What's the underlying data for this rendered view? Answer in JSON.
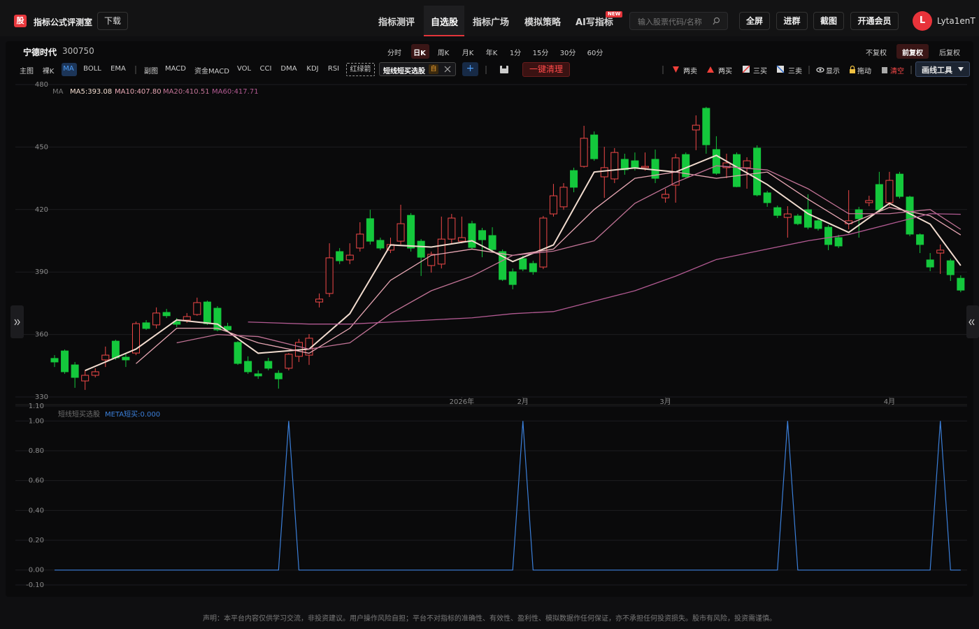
{
  "header": {
    "logo": "股",
    "app_name": "指标公式评测室",
    "download": "下载",
    "nav": [
      "指标测评",
      "自选股",
      "指标广场",
      "模拟策略",
      "AI写指标"
    ],
    "new_badge": "NEW",
    "search_placeholder": "输入股票代码/名称",
    "buttons": [
      "全屏",
      "进群",
      "截图",
      "开通会员"
    ],
    "avatar": "L",
    "username": "Lyta1enT"
  },
  "stock": {
    "name": "宁德时代",
    "code": "300750",
    "periods": [
      "分时",
      "日K",
      "周K",
      "月K",
      "年K",
      "1分",
      "15分",
      "30分",
      "60分"
    ],
    "adjust": [
      "不复权",
      "前复权",
      "后复权"
    ]
  },
  "toolbar": {
    "main_label": "主图",
    "main": [
      "裸K",
      "MA",
      "BOLL",
      "EMA"
    ],
    "sub_label": "副图",
    "sub": [
      "MACD",
      "资金MACD",
      "VOL",
      "CCI",
      "DMA",
      "KDJ",
      "RSI"
    ],
    "arrow": "红绿箭",
    "active_indicator": "短线短买选股",
    "active_badge": "自",
    "plus": "+",
    "clear": "一键清理",
    "signals": [
      "两卖",
      "两买",
      "三买",
      "三卖"
    ],
    "show": "显示",
    "drag": "拖动",
    "empty": "清空",
    "draw_tools": "画线工具"
  },
  "footer": "声明：本平台内容仅供学习交流，非投资建议。用户操作风险自担；平台不对指标的准确性、有效性、盈利性、模拟数据作任何保证，亦不承担任何投资损失。股市有风险，投资需谨慎。",
  "chart_data": [
    {
      "type": "candlestick",
      "up_color": "#f04848",
      "down_color": "#14c83c",
      "grid": true,
      "ylim": [
        330,
        480
      ],
      "yticks": [
        330,
        360,
        390,
        420,
        450,
        480
      ],
      "xticks": [
        {
          "value": 40,
          "label": "2026年"
        },
        {
          "value": 46,
          "label": "2月"
        },
        {
          "value": 60,
          "label": "3月"
        },
        {
          "value": 82,
          "label": "4月"
        }
      ],
      "open": [
        348.5,
        352.1,
        345.4,
        337.7,
        340.4,
        347.8,
        356.8,
        349.1,
        351.1,
        365.6,
        364.6,
        370.6,
        366.2,
        366.9,
        369.6,
        375.6,
        372.6,
        363.9,
        356.2,
        347.1,
        341.1,
        347.1,
        341.4,
        343.8,
        349.5,
        350.1,
        375.6,
        379.7,
        399.8,
        395.8,
        401.5,
        415.6,
        405.2,
        400.5,
        404.8,
        417.2,
        404.8,
        393.1,
        393.8,
        405.8,
        404.8,
        413.2,
        409.9,
        407.5,
        399.8,
        390.1,
        396.4,
        394.1,
        392.4,
        417.9,
        421.3,
        438.7,
        440.7,
        455.8,
        435.7,
        434.7,
        444.1,
        443.4,
        440.1,
        444.1,
        425.6,
        431.7,
        446.4,
        458.2,
        468.6,
        448.8,
        440.1,
        446.4,
        440.1,
        449.5,
        428.0,
        420.9,
        416.2,
        416.9,
        419.9,
        414.6,
        411.5,
        406.5,
        413.2,
        419.9,
        423.3,
        432.0,
        423.3,
        437.0,
        426.0,
        407.9,
        395.8,
        399.1,
        395.4,
        387.0
      ],
      "high": [
        350.1,
        352.8,
        346.8,
        342.8,
        343.8,
        354.2,
        357.5,
        351.1,
        366.2,
        366.9,
        373.0,
        372.3,
        367.9,
        370.3,
        377.7,
        376.3,
        373.6,
        365.6,
        356.8,
        349.5,
        342.8,
        348.8,
        342.8,
        351.1,
        357.9,
        360.2,
        379.7,
        403.8,
        401.5,
        403.8,
        413.9,
        419.9,
        406.5,
        406.5,
        422.3,
        418.3,
        405.8,
        399.8,
        416.6,
        417.9,
        416.6,
        414.6,
        411.2,
        411.5,
        400.8,
        391.7,
        397.8,
        395.4,
        416.9,
        432.3,
        432.7,
        440.1,
        460.2,
        457.5,
        450.1,
        449.5,
        446.8,
        447.4,
        447.4,
        448.8,
        430.0,
        446.8,
        447.4,
        465.2,
        469.3,
        455.2,
        446.8,
        447.4,
        445.1,
        450.8,
        429.0,
        421.9,
        421.6,
        417.9,
        427.3,
        415.6,
        412.5,
        407.9,
        429.3,
        421.3,
        426.6,
        438.1,
        438.1,
        438.1,
        426.6,
        408.5,
        399.1,
        403.2,
        396.4,
        388.4
      ],
      "low": [
        344.4,
        341.1,
        334.4,
        333.4,
        339.4,
        344.4,
        347.8,
        344.4,
        350.1,
        362.2,
        362.9,
        367.9,
        363.6,
        365.6,
        369.0,
        364.6,
        361.5,
        361.2,
        345.4,
        341.1,
        338.7,
        342.8,
        334.0,
        342.8,
        346.8,
        345.4,
        373.0,
        378.0,
        393.8,
        393.8,
        399.8,
        403.2,
        400.5,
        399.1,
        403.2,
        399.8,
        388.1,
        389.7,
        391.7,
        403.2,
        403.8,
        401.1,
        397.1,
        399.8,
        385.7,
        381.7,
        390.4,
        388.7,
        391.4,
        416.6,
        419.9,
        428.3,
        440.1,
        443.4,
        425.6,
        432.7,
        436.7,
        438.7,
        438.7,
        432.7,
        423.3,
        423.3,
        435.0,
        448.5,
        446.8,
        436.7,
        435.0,
        430.7,
        430.0,
        426.3,
        421.3,
        415.9,
        406.5,
        412.5,
        410.5,
        409.9,
        400.5,
        401.5,
        410.5,
        406.5,
        421.6,
        418.6,
        421.6,
        425.3,
        407.2,
        399.1,
        390.4,
        389.1,
        385.7,
        380.3
      ],
      "close": [
        346.8,
        342.1,
        339.4,
        340.4,
        342.1,
        350.1,
        348.8,
        347.8,
        365.2,
        362.9,
        370.3,
        369.0,
        364.9,
        368.6,
        375.3,
        365.2,
        362.2,
        362.2,
        346.1,
        342.1,
        340.1,
        343.8,
        338.7,
        350.5,
        356.2,
        358.2,
        377.0,
        396.8,
        395.4,
        398.1,
        408.2,
        404.8,
        401.5,
        403.2,
        413.2,
        401.5,
        397.1,
        398.5,
        405.8,
        415.9,
        406.5,
        401.8,
        405.5,
        400.8,
        386.4,
        384.0,
        391.4,
        390.1,
        415.9,
        426.6,
        430.7,
        430.7,
        454.2,
        444.4,
        440.1,
        447.4,
        439.1,
        440.1,
        440.7,
        435.0,
        427.3,
        444.8,
        435.7,
        460.5,
        451.1,
        437.4,
        442.4,
        431.0,
        443.4,
        427.0,
        423.3,
        417.2,
        417.9,
        413.2,
        411.5,
        410.9,
        403.2,
        402.5,
        414.6,
        415.6,
        424.3,
        419.9,
        434.0,
        426.3,
        408.2,
        403.2,
        392.4,
        400.5,
        388.7,
        381.3
      ],
      "legend_title": "MA",
      "overlays": [
        {
          "name": "MA5:393.08",
          "color": "#f2dccf",
          "x": [
            3,
            8,
            12,
            16,
            20,
            25,
            29,
            33,
            37,
            41,
            45,
            49,
            53,
            57,
            61,
            65,
            70,
            74,
            78,
            82,
            86,
            89
          ],
          "values": [
            342.7,
            353,
            367,
            365,
            351,
            353,
            370,
            403,
            402,
            405,
            395,
            403,
            438,
            440,
            438,
            446,
            432,
            418,
            409,
            423,
            413,
            393.1
          ]
        },
        {
          "name": "MA10:407.80",
          "color": "#e8a7b4",
          "x": [
            8,
            12,
            16,
            20,
            25,
            29,
            33,
            37,
            41,
            45,
            49,
            53,
            57,
            61,
            65,
            70,
            74,
            78,
            82,
            86,
            89
          ],
          "values": [
            346,
            363,
            363,
            356,
            351,
            363,
            386,
            398,
            401,
            398,
            401,
            420,
            435,
            438,
            435,
            438,
            425,
            413,
            421,
            417,
            407.8
          ]
        },
        {
          "name": "MA20:410.51",
          "color": "#c27396",
          "x": [
            12,
            16,
            20,
            25,
            29,
            33,
            37,
            41,
            45,
            49,
            53,
            57,
            61,
            65,
            70,
            74,
            78,
            82,
            86,
            89
          ],
          "values": [
            356,
            360,
            359,
            353,
            356,
            370,
            381,
            388,
            398,
            400,
            405,
            423,
            433,
            441,
            439,
            430,
            418,
            418,
            420,
            410.5
          ]
        },
        {
          "name": "MA60:417.71",
          "color": "#b25a92",
          "x": [
            19,
            25,
            29,
            33,
            37,
            41,
            45,
            49,
            53,
            57,
            61,
            65,
            70,
            74,
            78,
            82,
            86,
            89
          ],
          "values": [
            366,
            365,
            365,
            366,
            367,
            368,
            370,
            371,
            376,
            381,
            388,
            396,
            401,
            405,
            408,
            413,
            418,
            417.7
          ]
        }
      ]
    },
    {
      "type": "line",
      "title": "短线短买选股",
      "grid": true,
      "ylim": [
        -0.1,
        1.1
      ],
      "yticks": [
        {
          "value": 1.1,
          "label": "1.10"
        },
        {
          "value": 1,
          "label": "1.00"
        },
        {
          "value": 0.8,
          "label": "0.80"
        },
        {
          "value": 0.6,
          "label": "0.60"
        },
        {
          "value": 0.4,
          "label": "0.40"
        },
        {
          "value": 0.2,
          "label": "0.20"
        },
        {
          "value": 0,
          "label": "0.00"
        },
        {
          "value": -0.1,
          "label": "-0.10"
        }
      ],
      "series": [
        {
          "name": "META短买:0.000",
          "color": "#3b7fd9",
          "values": [
            0,
            0,
            0,
            0,
            0,
            0,
            0,
            0,
            0,
            0,
            0,
            0,
            0,
            0,
            0,
            0,
            0,
            0,
            0,
            0,
            0,
            0,
            0,
            1,
            0,
            0,
            0,
            0,
            0,
            0,
            0,
            0,
            0,
            0,
            0,
            0,
            0,
            0,
            0,
            0,
            0,
            0,
            0,
            0,
            0,
            0,
            1,
            0,
            0,
            0,
            0,
            0,
            0,
            0,
            0,
            0,
            0,
            0,
            0,
            0,
            0,
            0,
            0,
            0,
            0,
            0,
            0,
            0,
            0,
            0,
            0,
            0,
            1,
            0,
            0,
            0,
            0,
            0,
            0,
            0,
            0,
            0,
            0,
            0,
            0,
            0,
            0,
            1,
            0,
            0
          ]
        }
      ]
    }
  ]
}
